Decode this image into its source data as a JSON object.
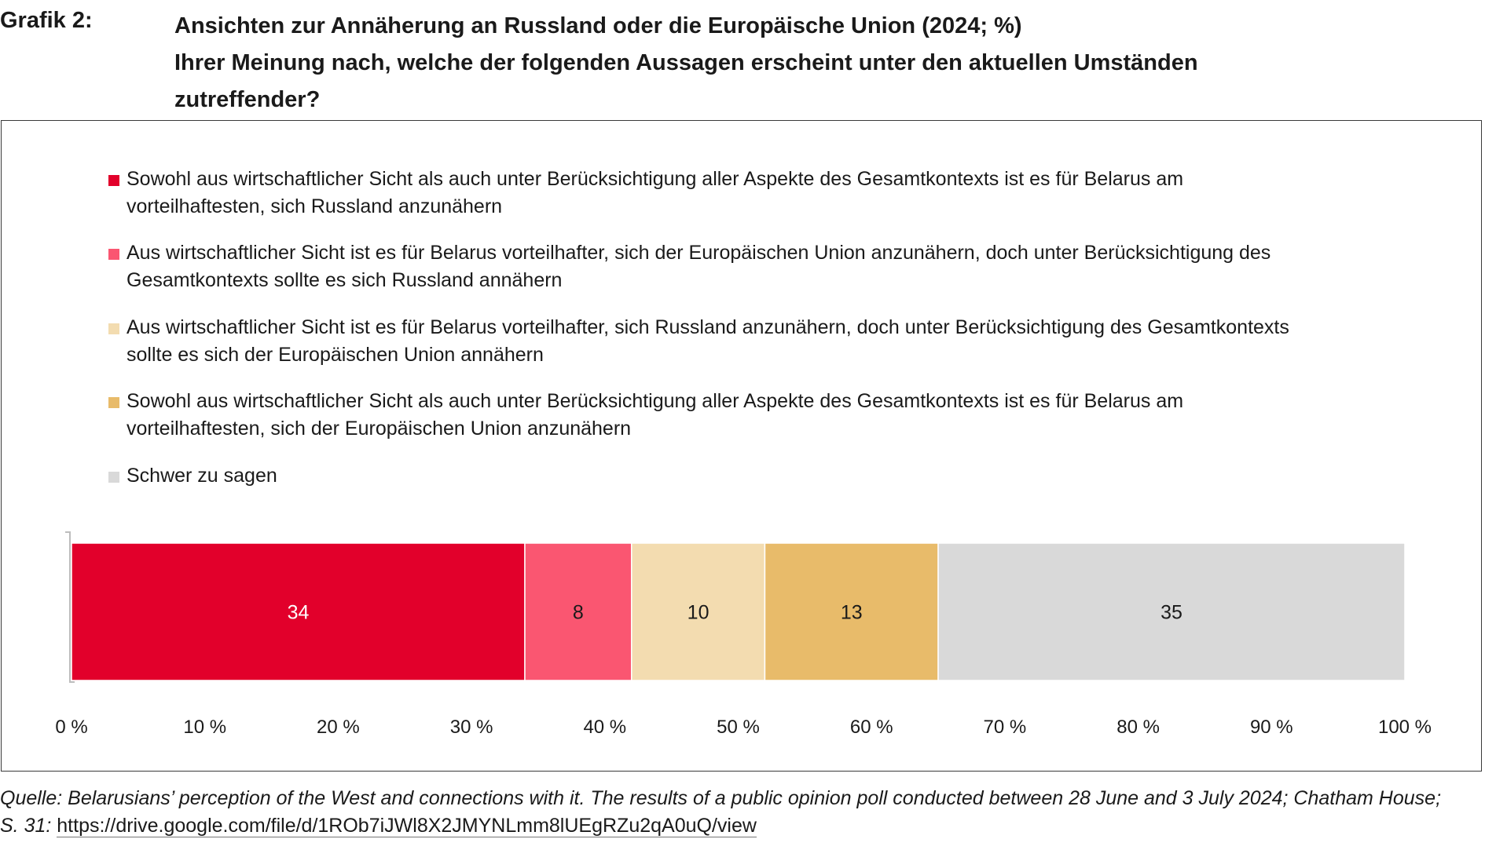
{
  "header": {
    "grafik_label": "Grafik 2:",
    "title_line1": "Ansichten zur Annäherung an Russland oder die Europäische Union (2024; %)",
    "title_line2": "Ihrer Meinung nach, welche der folgenden Aussagen erscheint unter den aktuellen Umständen",
    "title_line3": "zutreffender?"
  },
  "legend": [
    {
      "line1": "Sowohl aus wirtschaftlicher Sicht als auch unter Berücksichtigung aller Aspekte des Gesamtkontexts ist es für Belarus am",
      "line2": "vorteilhaftesten, sich Russland anzunähern",
      "color": "#e2002b"
    },
    {
      "line1": "Aus wirtschaftlicher Sicht ist es für Belarus vorteilhafter, sich der Europäischen Union anzunähern, doch unter Berücksichtigung des",
      "line2": "Gesamtkontexts sollte es sich Russland annähern",
      "color": "#fa5671"
    },
    {
      "line1": "Aus wirtschaftlicher Sicht ist es für Belarus vorteilhafter, sich Russland anzunähern, doch unter Berücksichtigung des Gesamtkontexts",
      "line2": "sollte es sich der Europäischen Union annähern",
      "color": "#f3dcb0"
    },
    {
      "line1": "Sowohl aus wirtschaftlicher Sicht als auch unter Berücksichtigung aller Aspekte des Gesamtkontexts ist es für Belarus am",
      "line2": "vorteilhaftesten, sich der Europäischen Union anzunähern",
      "color": "#e8bb6a"
    },
    {
      "line1": "Schwer zu sagen",
      "line2": "",
      "color": "#d9d9d9"
    }
  ],
  "chart_data": {
    "type": "bar",
    "orientation": "horizontal",
    "stacked": true,
    "xlim": [
      0,
      100
    ],
    "x_ticks": [
      "0 %",
      "10 %",
      "20 %",
      "30 %",
      "40 %",
      "50 %",
      "60 %",
      "70 %",
      "80 %",
      "90 %",
      "100 %"
    ],
    "series": [
      {
        "value": 34,
        "label": "34",
        "color": "#e2002b",
        "label_color": "#ffffff"
      },
      {
        "value": 8,
        "label": "8",
        "color": "#fa5671",
        "label_color": "#1a1a1a"
      },
      {
        "value": 10,
        "label": "10",
        "color": "#f3dcb0",
        "label_color": "#1a1a1a"
      },
      {
        "value": 13,
        "label": "13",
        "color": "#e8bb6a",
        "label_color": "#1a1a1a"
      },
      {
        "value": 35,
        "label": "35",
        "color": "#d9d9d9",
        "label_color": "#1a1a1a"
      }
    ]
  },
  "source": {
    "text": "Quelle: Belarusians’ perception of the West and connections with it. The results of a public opinion poll conducted between 28 June and 3 July 2024; Chatham House;",
    "text2": "S. 31:",
    "url": "https://drive.google.com/file/d/1ROb7iJWl8X2JMYNLmm8lUEgRZu2qA0uQ/view"
  }
}
